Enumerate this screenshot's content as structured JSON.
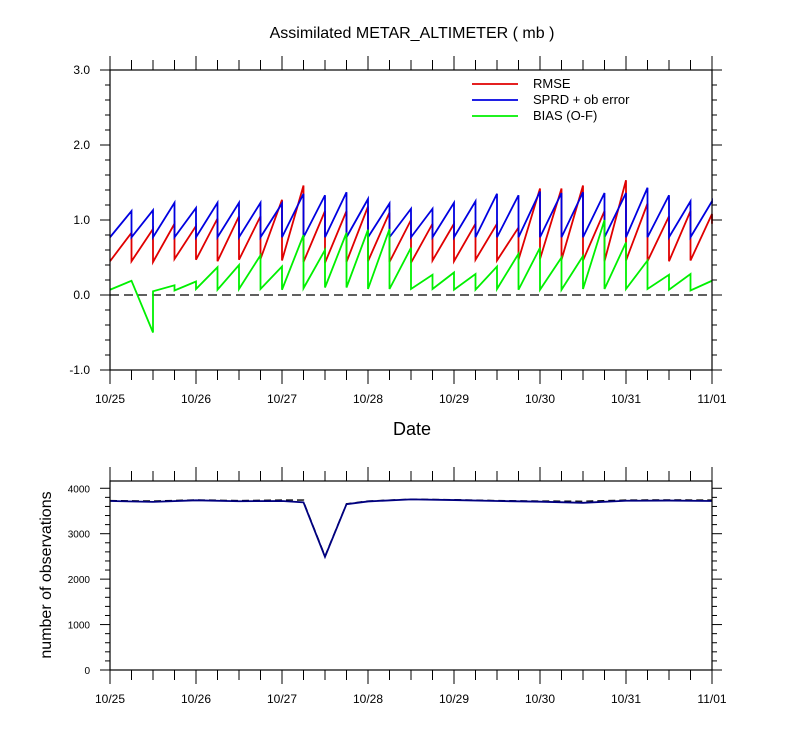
{
  "chart_data": [
    {
      "type": "line",
      "title": "Assimilated METAR_ALTIMETER ( mb )",
      "xlabel": "Date",
      "ylabel": "",
      "ylim": [
        -1.0,
        3.0
      ],
      "yticks": [
        "-1.0",
        "0.0",
        "1.0",
        "2.0",
        "3.0"
      ],
      "xlim": [
        0,
        7
      ],
      "xticks": [
        "10/25",
        "10/26",
        "10/27",
        "10/28",
        "10/29",
        "10/30",
        "10/31",
        "11/01"
      ],
      "zero_line": true,
      "legend": "top-right",
      "series": [
        {
          "name": "RMSE",
          "color": "#e00000",
          "prior": [
            0.45,
            0.45,
            0.44,
            0.48,
            0.47,
            0.45,
            0.47,
            0.48,
            0.46,
            0.44,
            0.43,
            0.44,
            0.45,
            0.44,
            0.43,
            0.46,
            0.45,
            0.47,
            0.46,
            0.47,
            0.48,
            0.47,
            0.46,
            0.45,
            0.46,
            0.45,
            0.45,
            0.46
          ],
          "posterior": [
            0.83,
            0.88,
            0.95,
            0.92,
            1.02,
            1.05,
            1.05,
            1.27,
            1.46,
            1.12,
            1.12,
            1.18,
            1.1,
            1.0,
            0.95,
            0.95,
            0.95,
            0.95,
            0.9,
            1.42,
            1.42,
            1.46,
            1.12,
            1.53,
            1.22,
            1.05,
            1.12,
            1.08
          ],
          "last": 0.95
        },
        {
          "name": "SPRD + ob error",
          "color": "#0000e0",
          "prior": [
            0.77,
            0.77,
            0.77,
            0.77,
            0.77,
            0.77,
            0.77,
            0.77,
            0.77,
            0.77,
            0.77,
            0.77,
            0.77,
            0.77,
            0.77,
            0.77,
            0.77,
            0.77,
            0.77,
            0.77,
            0.77,
            0.77,
            0.77,
            0.77,
            0.77,
            0.77,
            0.77,
            0.77
          ],
          "posterior": [
            1.12,
            1.13,
            1.23,
            1.16,
            1.23,
            1.23,
            1.23,
            1.22,
            1.35,
            1.33,
            1.37,
            1.28,
            1.22,
            1.15,
            1.15,
            1.23,
            1.25,
            1.35,
            1.33,
            1.38,
            1.36,
            1.37,
            1.36,
            1.36,
            1.43,
            1.33,
            1.25,
            1.25
          ],
          "last": 1.22
        },
        {
          "name": "BIAS (O-F)",
          "color": "#00f000",
          "points": [
            [
              0,
              0.07
            ],
            [
              0.25,
              0.19
            ],
            [
              0.5,
              -0.5
            ],
            [
              0.5,
              0.05
            ],
            [
              0.75,
              0.13
            ],
            [
              0.75,
              0.06
            ],
            [
              1,
              0.18
            ],
            [
              1,
              0.08
            ],
            [
              1.25,
              0.37
            ],
            [
              1.25,
              0.07
            ],
            [
              1.5,
              0.4
            ],
            [
              1.5,
              0.08
            ],
            [
              1.75,
              0.53
            ],
            [
              1.75,
              0.08
            ],
            [
              2,
              0.38
            ],
            [
              2,
              0.07
            ],
            [
              2.25,
              0.8
            ],
            [
              2.25,
              0.09
            ],
            [
              2.5,
              0.6
            ],
            [
              2.5,
              0.1
            ],
            [
              2.75,
              0.83
            ],
            [
              2.75,
              0.1
            ],
            [
              3,
              0.87
            ],
            [
              3,
              0.08
            ],
            [
              3.25,
              0.88
            ],
            [
              3.25,
              0.08
            ],
            [
              3.5,
              0.63
            ],
            [
              3.5,
              0.08
            ],
            [
              3.75,
              0.27
            ],
            [
              3.75,
              0.08
            ],
            [
              4,
              0.3
            ],
            [
              4,
              0.07
            ],
            [
              4.25,
              0.28
            ],
            [
              4.25,
              0.07
            ],
            [
              4.5,
              0.38
            ],
            [
              4.5,
              0.08
            ],
            [
              4.75,
              0.55
            ],
            [
              4.75,
              0.07
            ],
            [
              5,
              0.63
            ],
            [
              5,
              0.07
            ],
            [
              5.25,
              0.5
            ],
            [
              5.25,
              0.07
            ],
            [
              5.5,
              0.52
            ],
            [
              5.5,
              0.08
            ],
            [
              5.75,
              1.0
            ],
            [
              5.75,
              0.08
            ],
            [
              6,
              0.7
            ],
            [
              6,
              0.08
            ],
            [
              6.25,
              0.46
            ],
            [
              6.25,
              0.08
            ],
            [
              6.5,
              0.27
            ],
            [
              6.5,
              0.07
            ],
            [
              6.75,
              0.28
            ],
            [
              6.75,
              0.06
            ],
            [
              7,
              0.19
            ]
          ]
        }
      ]
    },
    {
      "type": "line",
      "title": "",
      "xlabel": "",
      "ylabel": "number of observations",
      "ylim": [
        0,
        4000
      ],
      "yticks": [
        "0",
        "1000",
        "2000",
        "3000",
        "4000"
      ],
      "xlim": [
        0,
        7
      ],
      "xticks": [
        "10/25",
        "10/26",
        "10/27",
        "10/28",
        "10/29",
        "10/30",
        "10/31",
        "11/01"
      ],
      "series": [
        {
          "style": "dashed",
          "color": "#000000",
          "points": [
            [
              0,
              3730
            ],
            [
              0.5,
              3720
            ],
            [
              1,
              3745
            ],
            [
              1.5,
              3730
            ],
            [
              2,
              3740
            ],
            [
              2.25,
              3740
            ],
            [
              2.25,
              3710
            ],
            [
              2.5,
              2510
            ],
            [
              2.75,
              3660
            ],
            [
              3,
              3720
            ],
            [
              3.5,
              3760
            ],
            [
              4,
              3750
            ],
            [
              4.5,
              3730
            ],
            [
              5,
              3720
            ],
            [
              5.5,
              3715
            ],
            [
              6,
              3740
            ],
            [
              6.5,
              3745
            ],
            [
              7,
              3740
            ]
          ]
        },
        {
          "style": "solid",
          "color": "#000080",
          "points": [
            [
              0,
              3720
            ],
            [
              0.5,
              3700
            ],
            [
              1,
              3735
            ],
            [
              1.5,
              3715
            ],
            [
              2,
              3720
            ],
            [
              2.25,
              3690
            ],
            [
              2.5,
              2490
            ],
            [
              2.75,
              3650
            ],
            [
              3,
              3710
            ],
            [
              3.5,
              3755
            ],
            [
              4,
              3740
            ],
            [
              4.5,
              3720
            ],
            [
              5,
              3705
            ],
            [
              5.5,
              3680
            ],
            [
              6,
              3725
            ],
            [
              6.5,
              3730
            ],
            [
              7,
              3720
            ]
          ]
        }
      ]
    }
  ]
}
